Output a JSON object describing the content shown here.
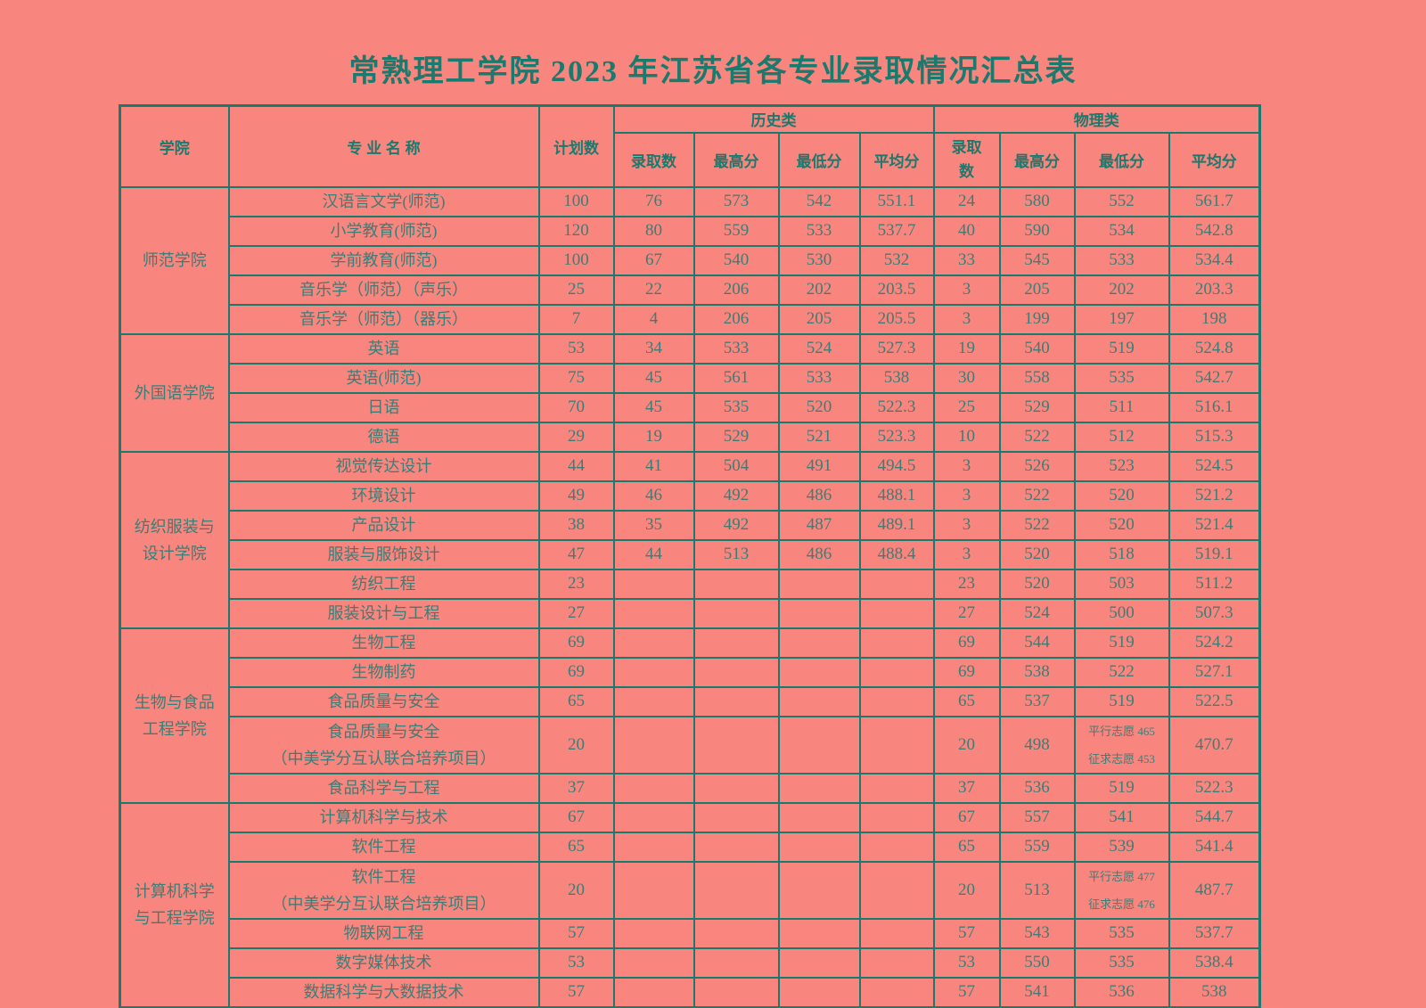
{
  "title": "常熟理工学院 2023 年江苏省各专业录取情况汇总表",
  "colors": {
    "background": "#F8857E",
    "border": "#1A7A6E",
    "header_text": "#1A7A6E",
    "body_text": "#3E7D75"
  },
  "table": {
    "headers": {
      "college": "学院",
      "major": "专 业 名 称",
      "plan": "计划数",
      "history_group": "历史类",
      "physics_group": "物理类",
      "history_sub": [
        "录取数",
        "最高分",
        "最低分",
        "平均分"
      ],
      "physics_sub": [
        "录取数",
        "最高分",
        "最低分",
        "平均分"
      ]
    },
    "groups": [
      {
        "college": "师范学院",
        "rows": [
          {
            "major": "汉语言文学(师范)",
            "plan": "100",
            "cells": [
              "76",
              "573",
              "542",
              "551.1",
              "24",
              "580",
              "552",
              "561.7"
            ]
          },
          {
            "major": "小学教育(师范)",
            "plan": "120",
            "cells": [
              "80",
              "559",
              "533",
              "537.7",
              "40",
              "590",
              "534",
              "542.8"
            ]
          },
          {
            "major": "学前教育(师范)",
            "plan": "100",
            "cells": [
              "67",
              "540",
              "530",
              "532",
              "33",
              "545",
              "533",
              "534.4"
            ]
          },
          {
            "major": "音乐学（师范）（声乐）",
            "plan": "25",
            "cells": [
              "22",
              "206",
              "202",
              "203.5",
              "3",
              "205",
              "202",
              "203.3"
            ]
          },
          {
            "major": "音乐学（师范）（器乐）",
            "plan": "7",
            "cells": [
              "4",
              "206",
              "205",
              "205.5",
              "3",
              "199",
              "197",
              "198"
            ]
          }
        ]
      },
      {
        "college": "外国语学院",
        "rows": [
          {
            "major": "英语",
            "plan": "53",
            "cells": [
              "34",
              "533",
              "524",
              "527.3",
              "19",
              "540",
              "519",
              "524.8"
            ]
          },
          {
            "major": "英语(师范)",
            "plan": "75",
            "cells": [
              "45",
              "561",
              "533",
              "538",
              "30",
              "558",
              "535",
              "542.7"
            ]
          },
          {
            "major": "日语",
            "plan": "70",
            "cells": [
              "45",
              "535",
              "520",
              "522.3",
              "25",
              "529",
              "511",
              "516.1"
            ]
          },
          {
            "major": "德语",
            "plan": "29",
            "cells": [
              "19",
              "529",
              "521",
              "523.3",
              "10",
              "522",
              "512",
              "515.3"
            ]
          }
        ]
      },
      {
        "college": "纺织服装与\n设计学院",
        "rows": [
          {
            "major": "视觉传达设计",
            "plan": "44",
            "cells": [
              "41",
              "504",
              "491",
              "494.5",
              "3",
              "526",
              "523",
              "524.5"
            ]
          },
          {
            "major": "环境设计",
            "plan": "49",
            "cells": [
              "46",
              "492",
              "486",
              "488.1",
              "3",
              "522",
              "520",
              "521.2"
            ]
          },
          {
            "major": "产品设计",
            "plan": "38",
            "cells": [
              "35",
              "492",
              "487",
              "489.1",
              "3",
              "522",
              "520",
              "521.4"
            ]
          },
          {
            "major": "服装与服饰设计",
            "plan": "47",
            "cells": [
              "44",
              "513",
              "486",
              "488.4",
              "3",
              "520",
              "518",
              "519.1"
            ]
          },
          {
            "major": "纺织工程",
            "plan": "23",
            "cells": [
              "",
              "",
              "",
              "",
              "23",
              "520",
              "503",
              "511.2"
            ]
          },
          {
            "major": "服装设计与工程",
            "plan": "27",
            "cells": [
              "",
              "",
              "",
              "",
              "27",
              "524",
              "500",
              "507.3"
            ]
          }
        ]
      },
      {
        "college": "生物与食品\n工程学院",
        "rows": [
          {
            "major": "生物工程",
            "plan": "69",
            "cells": [
              "",
              "",
              "",
              "",
              "69",
              "544",
              "519",
              "524.2"
            ]
          },
          {
            "major": "生物制药",
            "plan": "69",
            "cells": [
              "",
              "",
              "",
              "",
              "69",
              "538",
              "522",
              "527.1"
            ]
          },
          {
            "major": "食品质量与安全",
            "plan": "65",
            "cells": [
              "",
              "",
              "",
              "",
              "65",
              "537",
              "519",
              "522.5"
            ]
          },
          {
            "major": "食品质量与安全\n（中美学分互认联合培养项目）",
            "plan": "20",
            "cells": [
              "",
              "",
              "",
              "",
              "20",
              "498",
              {
                "text": "平行志愿 465\n征求志愿 453",
                "small": true
              },
              "470.7"
            ]
          },
          {
            "major": "食品科学与工程",
            "plan": "37",
            "cells": [
              "",
              "",
              "",
              "",
              "37",
              "536",
              "519",
              "522.3"
            ]
          }
        ]
      },
      {
        "college": "计算机科学\n与工程学院",
        "rows": [
          {
            "major": "计算机科学与技术",
            "plan": "67",
            "cells": [
              "",
              "",
              "",
              "",
              "67",
              "557",
              "541",
              "544.7"
            ]
          },
          {
            "major": "软件工程",
            "plan": "65",
            "cells": [
              "",
              "",
              "",
              "",
              "65",
              "559",
              "539",
              "541.4"
            ]
          },
          {
            "major": "软件工程\n（中美学分互认联合培养项目）",
            "plan": "20",
            "cells": [
              "",
              "",
              "",
              "",
              "20",
              "513",
              {
                "text": "平行志愿 477\n征求志愿 476",
                "small": true
              },
              "487.7"
            ]
          },
          {
            "major": "物联网工程",
            "plan": "57",
            "cells": [
              "",
              "",
              "",
              "",
              "57",
              "543",
              "535",
              "537.7"
            ]
          },
          {
            "major": "数字媒体技术",
            "plan": "53",
            "cells": [
              "",
              "",
              "",
              "",
              "53",
              "550",
              "535",
              "538.4"
            ]
          },
          {
            "major": "数据科学与大数据技术",
            "plan": "57",
            "cells": [
              "",
              "",
              "",
              "",
              "57",
              "541",
              "536",
              "538"
            ]
          }
        ]
      }
    ]
  }
}
